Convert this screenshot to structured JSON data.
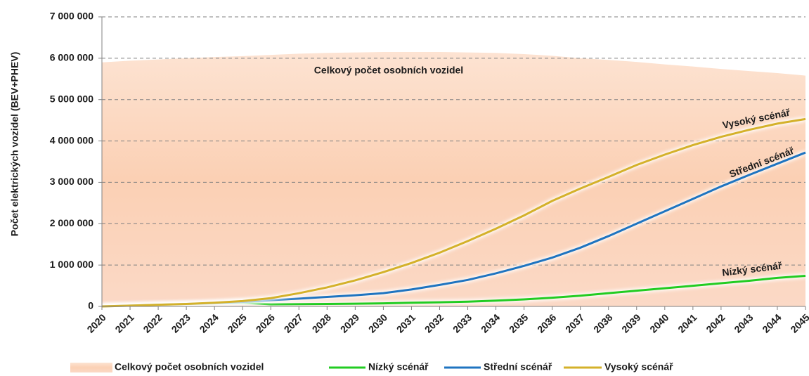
{
  "chart_data": {
    "type": "line",
    "y_label": "Počet elektrických vozidel (BEV+PHEV)",
    "x": [
      2020,
      2021,
      2022,
      2023,
      2024,
      2025,
      2026,
      2027,
      2028,
      2029,
      2030,
      2031,
      2032,
      2033,
      2034,
      2035,
      2036,
      2037,
      2038,
      2039,
      2040,
      2041,
      2042,
      2043,
      2044,
      2045
    ],
    "xlim": [
      2020,
      2045
    ],
    "ylim": [
      0,
      7000000
    ],
    "yticks": [
      0,
      {
        "value": 1000000,
        "label": "1 000 000"
      },
      {
        "value": 2000000,
        "label": "2 000 000"
      },
      {
        "value": 3000000,
        "label": "3 000 000"
      },
      {
        "value": 4000000,
        "label": "4 000 000"
      },
      {
        "value": 5000000,
        "label": "5 000 000"
      },
      {
        "value": 6000000,
        "label": "6 000 000"
      },
      {
        "value": 7000000,
        "label": "7 000 000"
      }
    ],
    "grid": true,
    "series": [
      {
        "name": "Celkový počet osobních vozidel",
        "kind": "area",
        "color": "#fbd3b9",
        "values": [
          5900000,
          5940000,
          5970000,
          6000000,
          6030000,
          6050000,
          6080000,
          6110000,
          6130000,
          6140000,
          6150000,
          6150000,
          6150000,
          6140000,
          6130000,
          6100000,
          6060000,
          6000000,
          5960000,
          5910000,
          5850000,
          5800000,
          5740000,
          5690000,
          5640000,
          5580000
        ]
      },
      {
        "name": "Nízký scénář",
        "kind": "line",
        "color": "#22cc22",
        "values": [
          0,
          20000,
          40000,
          55000,
          75000,
          90000,
          50000,
          55000,
          60000,
          65000,
          75000,
          90000,
          100000,
          115000,
          140000,
          170000,
          210000,
          260000,
          320000,
          380000,
          440000,
          500000,
          560000,
          620000,
          690000,
          740000
        ]
      },
      {
        "name": "Střední scénář",
        "kind": "line",
        "color": "#1f74c0",
        "values": [
          0,
          20000,
          40000,
          60000,
          80000,
          110000,
          150000,
          190000,
          230000,
          270000,
          320000,
          410000,
          520000,
          640000,
          800000,
          980000,
          1180000,
          1420000,
          1700000,
          2000000,
          2300000,
          2600000,
          2900000,
          3180000,
          3450000,
          3720000
        ]
      },
      {
        "name": "Vysoký scénář",
        "kind": "line",
        "color": "#d4b12a",
        "values": [
          0,
          20000,
          40000,
          60000,
          90000,
          130000,
          200000,
          320000,
          460000,
          630000,
          830000,
          1050000,
          1300000,
          1580000,
          1880000,
          2200000,
          2550000,
          2850000,
          3130000,
          3420000,
          3670000,
          3900000,
          4100000,
          4270000,
          4420000,
          4530000
        ]
      }
    ],
    "annotations": [
      "Celkový počet osobních vozidel",
      "Vysoký scénář",
      "Střední scénář",
      "Nízký scénář"
    ]
  }
}
